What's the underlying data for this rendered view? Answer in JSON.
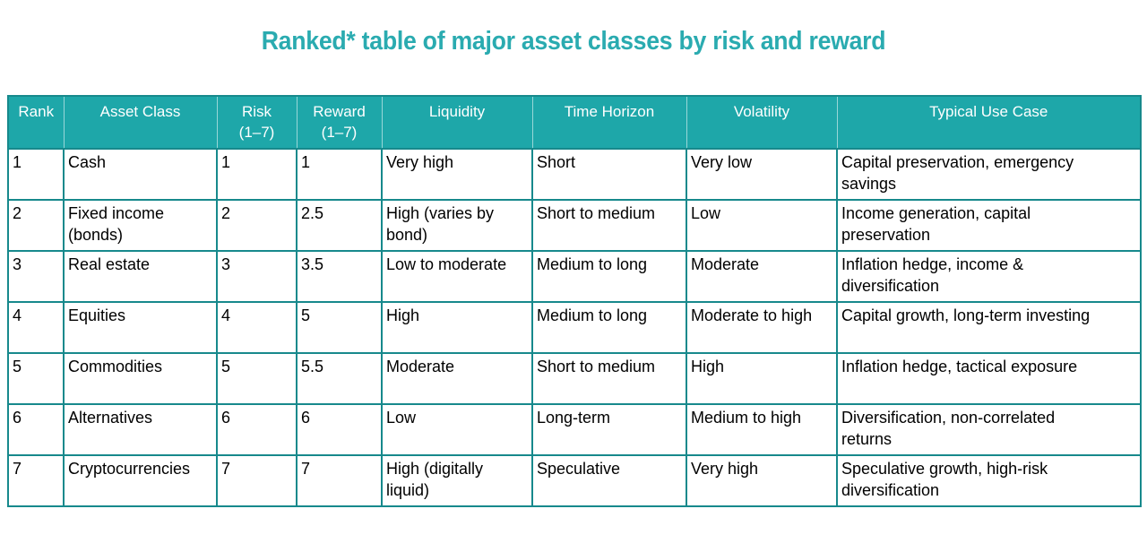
{
  "title": "Ranked* table of major asset classes by risk and reward",
  "colors": {
    "title": "#2AABB0",
    "header_bg": "#1EA7A9",
    "header_text": "#FFFFFF",
    "border": "#17898C",
    "body_text": "#000000",
    "page_bg": "#FFFFFF"
  },
  "chart_data": {
    "type": "table",
    "title": "Ranked* table of major asset classes by risk and reward",
    "columns": [
      "Rank",
      "Asset Class",
      "Risk (1–7)",
      "Reward (1–7)",
      "Liquidity",
      "Time Horizon",
      "Volatility",
      "Typical Use Case"
    ],
    "header_lines": [
      [
        "Rank",
        ""
      ],
      [
        "Asset Class",
        ""
      ],
      [
        "Risk",
        "(1–7)"
      ],
      [
        "Reward",
        "(1–7)"
      ],
      [
        "Liquidity",
        ""
      ],
      [
        "Time Horizon",
        ""
      ],
      [
        "Volatility",
        ""
      ],
      [
        "Typical Use Case",
        ""
      ]
    ],
    "rows": [
      [
        "1",
        "Cash",
        "1",
        "1",
        "Very high",
        "Short",
        "Very low",
        "Capital preservation, emergency\nsavings"
      ],
      [
        "2",
        "Fixed income\n(bonds)",
        "2",
        "2.5",
        "High (varies by\nbond)",
        "Short to medium",
        "Low",
        "Income generation, capital\npreservation"
      ],
      [
        "3",
        "Real estate",
        "3",
        "3.5",
        "Low to moderate",
        "Medium to long",
        "Moderate",
        "Inflation hedge, income &\ndiversification"
      ],
      [
        "4",
        "Equities",
        "4",
        "5",
        "High",
        "Medium to long",
        "Moderate to high",
        "Capital growth, long-term investing"
      ],
      [
        "5",
        "Commodities",
        "5",
        "5.5",
        "Moderate",
        "Short to medium",
        "High",
        "Inflation hedge, tactical exposure"
      ],
      [
        "6",
        "Alternatives",
        "6",
        "6",
        "Low",
        "Long-term",
        "Medium to high",
        "Diversification, non-correlated\nreturns"
      ],
      [
        "7",
        "Cryptocurrencies",
        "7",
        "7",
        "High (digitally\nliquid)",
        "Speculative",
        "Very high",
        "Speculative growth, high-risk\ndiversification"
      ]
    ]
  }
}
